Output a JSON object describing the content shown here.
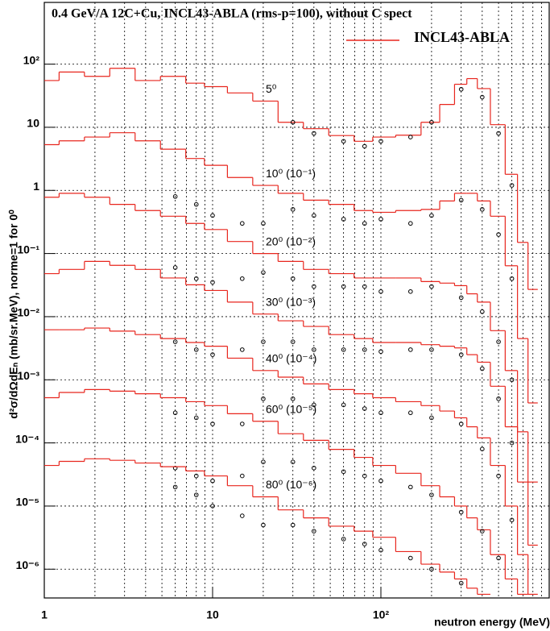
{
  "chart_data": {
    "type": "line",
    "title": "0.4 GeV/A 12C+Cu, INCL43-ABLA (rms-p=100), without C spect",
    "xlabel": "neutron energy (MeV)",
    "ylabel": "d²σ/dΩdEₙ (mb/sr.MeV), norme=1 for 0⁰",
    "log_x": true,
    "log_y": true,
    "grid": true,
    "xlim": [
      1,
      1000
    ],
    "ylim": [
      3.5e-07,
      950
    ],
    "xticks": [
      1,
      10,
      {
        "value": 100,
        "label": "10²"
      }
    ],
    "yticks": [
      {
        "value": 1e-06,
        "label": "10⁻⁶"
      },
      {
        "value": 1e-05,
        "label": "10⁻⁵"
      },
      {
        "value": 0.0001,
        "label": "10⁻⁴"
      },
      {
        "value": 0.001,
        "label": "10⁻³"
      },
      {
        "value": 0.01,
        "label": "10⁻²"
      },
      {
        "value": 0.1,
        "label": "10⁻¹"
      },
      1,
      10,
      {
        "value": 100,
        "label": "10²"
      }
    ],
    "legend": {
      "name": "INCL43-ABLA",
      "color": "#e8261e",
      "position": "top right"
    },
    "model_x": [
      1,
      1.5,
      2,
      3,
      4,
      6,
      8,
      10,
      15,
      20,
      30,
      40,
      60,
      80,
      100,
      150,
      200,
      250,
      300,
      350,
      400,
      500,
      600,
      700,
      800
    ],
    "data_x": [
      6,
      8,
      10,
      15,
      20,
      30,
      40,
      60,
      80,
      100,
      150,
      200,
      300,
      400,
      500,
      600
    ],
    "curves": [
      {
        "annotation": "5⁰",
        "model": [
          55,
          75,
          64,
          86,
          55,
          64,
          50,
          44,
          35,
          26,
          12,
          9.5,
          7.4,
          6,
          7,
          7.5,
          12,
          23,
          48,
          59,
          41,
          11,
          1.8,
          0.15,
          0.027
        ],
        "data": [
          null,
          null,
          null,
          null,
          null,
          12,
          8,
          6,
          5,
          6,
          7,
          12,
          40,
          30,
          8,
          1.2
        ]
      },
      {
        "annotation": "10⁰ (10⁻¹)",
        "model": [
          5.3,
          6.1,
          7,
          8.2,
          6.1,
          4.5,
          3.2,
          2.5,
          1.6,
          1.2,
          0.9,
          0.7,
          0.6,
          0.48,
          0.45,
          0.48,
          0.5,
          0.68,
          0.9,
          0.9,
          0.68,
          0.39,
          0.064,
          0.0045,
          0.00043
        ],
        "data": [
          0.8,
          0.6,
          0.4,
          0.3,
          0.3,
          0.5,
          0.4,
          0.35,
          0.3,
          0.35,
          0.3,
          0.4,
          0.7,
          0.5,
          0.2,
          0.04
        ]
      },
      {
        "annotation": "20⁰ (10⁻²)",
        "model": [
          0.78,
          0.9,
          0.78,
          0.6,
          0.48,
          0.39,
          0.3,
          0.24,
          0.155,
          0.1,
          0.075,
          0.056,
          0.048,
          0.041,
          0.041,
          0.041,
          0.036,
          0.034,
          0.031,
          0.023,
          0.017,
          0.006,
          0.0014,
          0.00015,
          2.4e-05
        ],
        "data": [
          0.06,
          0.04,
          0.035,
          0.04,
          0.05,
          0.04,
          0.03,
          0.03,
          0.03,
          0.025,
          0.025,
          0.03,
          0.02,
          0.012,
          0.004,
          0.001
        ]
      },
      {
        "annotation": "30⁰ (10⁻³)",
        "model": [
          0.048,
          0.056,
          0.075,
          0.065,
          0.056,
          0.041,
          0.032,
          0.026,
          0.017,
          0.011,
          0.0086,
          0.007,
          0.0052,
          0.0045,
          0.0039,
          0.0039,
          0.0036,
          0.0034,
          0.0032,
          0.0025,
          0.0019,
          0.00079,
          0.00018,
          2.4e-05,
          2.4e-06
        ],
        "data": [
          0.004,
          0.003,
          0.0025,
          0.003,
          0.004,
          0.004,
          0.003,
          0.003,
          0.003,
          0.0028,
          0.003,
          0.003,
          0.0025,
          0.0015,
          0.0005,
          0.0001
        ]
      },
      {
        "annotation": "40⁰ (10⁻⁴)",
        "model": [
          0.0062,
          0.0062,
          0.0066,
          0.0059,
          0.0052,
          0.0045,
          0.0039,
          0.0034,
          0.0022,
          0.0014,
          0.0011,
          0.00086,
          0.0007,
          0.0006,
          0.00052,
          0.00045,
          0.00039,
          0.00032,
          0.00025,
          0.00018,
          0.00012,
          4.4e-05,
          1e-05,
          1.7e-06,
          4e-07
        ],
        "data": [
          0.0003,
          0.00025,
          0.0002,
          0.0002,
          0.0005,
          0.0005,
          0.0004,
          0.0004,
          0.00035,
          0.0003,
          0.0003,
          0.00025,
          0.0002,
          8e-05,
          3e-05,
          6e-06
        ]
      },
      {
        "annotation": "60⁰ (10⁻⁵)",
        "model": [
          0.00052,
          0.00063,
          0.0007,
          0.00066,
          0.0006,
          0.00052,
          0.00045,
          0.00039,
          0.00029,
          0.00022,
          0.00014,
          0.00011,
          7.9e-05,
          5.9e-05,
          4.4e-05,
          3.3e-05,
          2.1e-05,
          1.4e-05,
          1e-05,
          6.5e-06,
          4.2e-06,
          1.7e-06,
          7e-07,
          4e-07,
          null
        ],
        "data": [
          4e-05,
          3e-05,
          2.5e-05,
          3e-05,
          5e-05,
          5e-05,
          4e-05,
          3.5e-05,
          3e-05,
          2.5e-05,
          2e-05,
          1.5e-05,
          8e-06,
          4e-06,
          1.5e-06,
          null
        ]
      },
      {
        "annotation": "80⁰ (10⁻⁶)",
        "model": [
          4.4e-05,
          5.1e-05,
          5.6e-05,
          5.3e-05,
          4.8e-05,
          4.2e-05,
          3.6e-05,
          3e-05,
          2.1e-05,
          1.4e-05,
          8.7e-06,
          6.5e-06,
          4.8e-06,
          4e-06,
          3.2e-06,
          1.9e-06,
          1.2e-06,
          9e-07,
          7e-07,
          5e-07,
          4e-07,
          null,
          null,
          null,
          null
        ],
        "data": [
          2e-05,
          1.5e-05,
          1e-05,
          7e-06,
          5e-06,
          5e-06,
          4e-06,
          3e-06,
          2.5e-06,
          2e-06,
          1.5e-06,
          1e-06,
          6e-07,
          null,
          null,
          null
        ]
      }
    ]
  }
}
